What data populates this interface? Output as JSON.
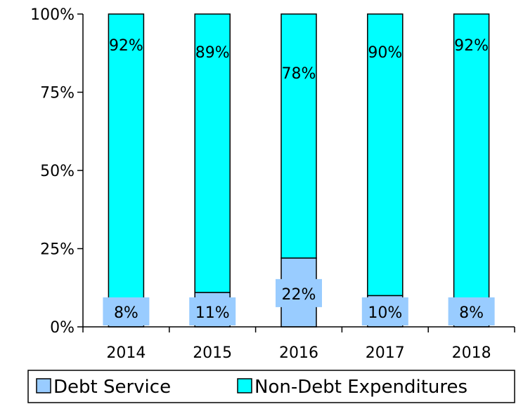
{
  "chart_data": {
    "type": "bar",
    "stacked": true,
    "categories": [
      "2014",
      "2015",
      "2016",
      "2017",
      "2018"
    ],
    "series": [
      {
        "name": "Debt Service",
        "values": [
          8,
          11,
          22,
          10,
          8
        ],
        "labels": [
          "8%",
          "11%",
          "22%",
          "10%",
          "8%"
        ],
        "color": "#99ccff"
      },
      {
        "name": "Non-Debt Expenditures",
        "values": [
          92,
          89,
          78,
          90,
          92
        ],
        "labels": [
          "92%",
          "89%",
          "78%",
          "90%",
          "92%"
        ],
        "color": "#00ffff"
      }
    ],
    "ylim": [
      0,
      100
    ],
    "yticks": [
      0,
      25,
      50,
      75,
      100
    ],
    "ytick_labels": [
      "0%",
      "25%",
      "50%",
      "75%",
      "100%"
    ],
    "title": "",
    "xlabel": "",
    "ylabel": "",
    "grid": false,
    "legend_position": "bottom",
    "label_box_color": "#99ccff"
  }
}
